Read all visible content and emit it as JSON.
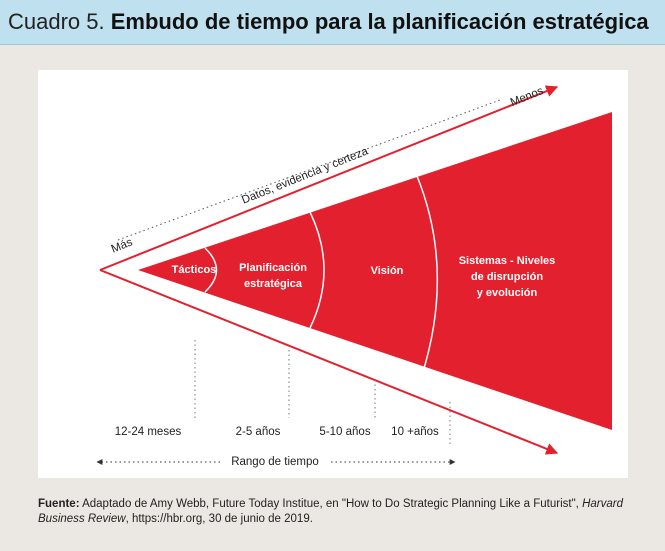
{
  "header": {
    "label": "Cuadro 5.",
    "title": "Embudo de tiempo para la planificación estratégica"
  },
  "diagram": {
    "axis": {
      "start": "Más",
      "end": "Menos",
      "label": "Datos, evidencia y certeza"
    },
    "segments": [
      {
        "lines": [
          "Tácticos"
        ]
      },
      {
        "lines": [
          "Planificación",
          "estratégica"
        ]
      },
      {
        "lines": [
          "Visión"
        ]
      },
      {
        "lines": [
          "Sistemas - Niveles",
          "de disrupción",
          "y evolución"
        ]
      }
    ],
    "time_labels": [
      "12-24 meses",
      "2-5 años",
      "5-10 años",
      "10 +años"
    ],
    "range_label": "Rango de tiempo"
  },
  "source": {
    "label": "Fuente:",
    "text": "Adaptado de Amy Webb, Future Today Institue, en \"How to Do Strategic Planning Like a Futurist\",",
    "italic": "Harvard Business Review",
    "text_end": ", https://hbr.org, 30 de junio de 2019."
  }
}
